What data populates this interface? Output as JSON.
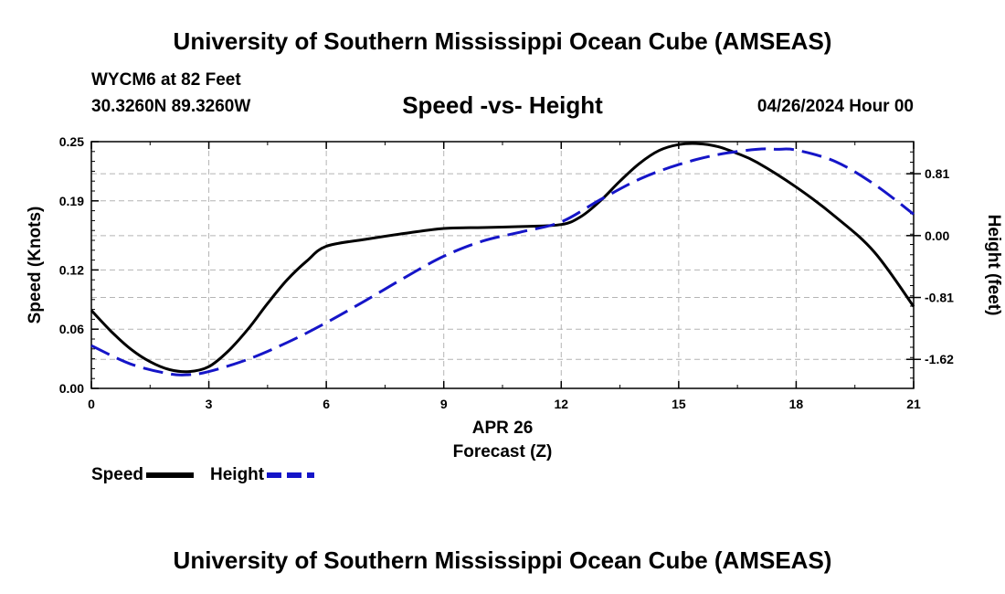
{
  "header": {
    "title": "University of Southern Mississippi Ocean Cube (AMSEAS)",
    "station": "WYCM6 at 82 Feet",
    "coords": "30.3260N  89.3260W",
    "datetime": "04/26/2024 Hour 00",
    "footer_title": "University of Southern Mississippi Ocean Cube (AMSEAS)"
  },
  "chart_data": {
    "type": "line",
    "title": "Speed -vs- Height",
    "xlabel": "Forecast (Z)",
    "xdate": "APR 26",
    "ylabel": "Speed (Knots)",
    "y2label": "Height (feet)",
    "xlim": [
      0,
      21
    ],
    "ylim": [
      0,
      0.25
    ],
    "y2lim": [
      -2.0,
      1.23
    ],
    "x_ticks": [
      "0",
      "3",
      "6",
      "9",
      "12",
      "15",
      "18",
      "21"
    ],
    "y_ticks": [
      "0.00",
      "0.06",
      "0.12",
      "0.19",
      "0.25"
    ],
    "y2_ticks": [
      "-1.62",
      "-0.81",
      "0.00",
      "0.81"
    ],
    "grid": true,
    "legend_position": "bottom-left",
    "colors": {
      "speed": "#000000",
      "height": "#1515c8"
    },
    "series": [
      {
        "name": "Speed",
        "axis": "left",
        "style": "solid",
        "x": [
          0,
          0.5,
          1,
          1.5,
          2,
          2.5,
          3,
          3.5,
          4,
          4.5,
          5,
          5.5,
          6,
          7,
          8,
          9,
          10,
          11,
          12,
          12.5,
          13,
          13.5,
          14,
          14.5,
          15,
          15.5,
          16,
          16.5,
          17,
          18,
          19,
          20,
          21
        ],
        "values": [
          0.079,
          0.058,
          0.04,
          0.027,
          0.019,
          0.017,
          0.022,
          0.038,
          0.06,
          0.086,
          0.11,
          0.129,
          0.144,
          0.151,
          0.157,
          0.162,
          0.163,
          0.164,
          0.166,
          0.174,
          0.19,
          0.21,
          0.228,
          0.241,
          0.247,
          0.248,
          0.245,
          0.238,
          0.229,
          0.204,
          0.174,
          0.138,
          0.083
        ]
      },
      {
        "name": "Height",
        "axis": "right",
        "style": "dashed",
        "x": [
          0,
          1,
          2,
          2.5,
          3,
          4,
          5,
          6,
          7,
          8,
          9,
          10,
          11,
          12,
          13,
          14,
          15,
          16,
          17,
          17.5,
          18,
          19,
          20,
          21
        ],
        "values": [
          -1.44,
          -1.68,
          -1.81,
          -1.82,
          -1.78,
          -1.62,
          -1.4,
          -1.14,
          -0.85,
          -0.55,
          -0.27,
          -0.07,
          0.05,
          0.18,
          0.47,
          0.74,
          0.93,
          1.06,
          1.13,
          1.13,
          1.12,
          0.97,
          0.67,
          0.28
        ]
      }
    ]
  }
}
